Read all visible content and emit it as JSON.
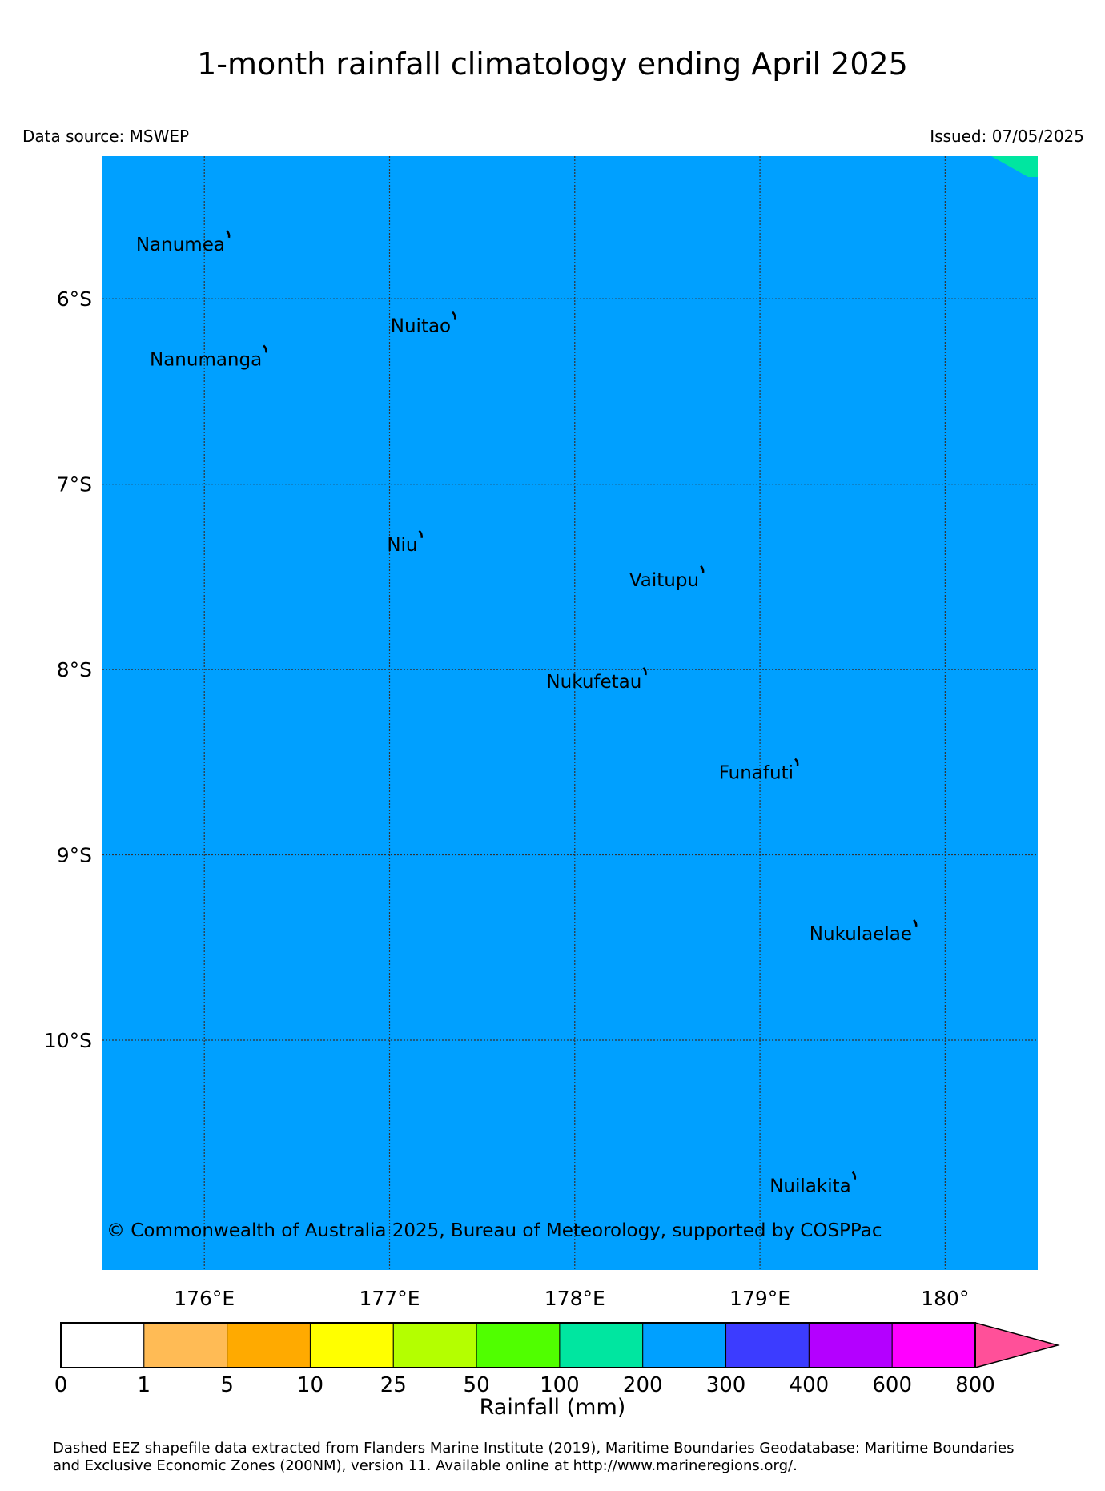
{
  "title": "1-month rainfall climatology ending April 2025",
  "data_source": "Data source: MSWEP",
  "issued": "Issued: 07/05/2025",
  "copyright": "© Commonwealth of Australia 2025, Bureau of Meteorology, supported by COSPPac",
  "map": {
    "extent": {
      "lon_min": 175.45,
      "lon_max": 180.5,
      "lat_top": -5.23,
      "lat_bottom": -11.24
    },
    "background_fill": "#00a0ff",
    "corner_fill": "#00e6a0",
    "gridline_color": "#333333",
    "lat_ticks": [
      {
        "value": -6,
        "label": "6°S"
      },
      {
        "value": -7,
        "label": "7°S"
      },
      {
        "value": -8,
        "label": "8°S"
      },
      {
        "value": -9,
        "label": "9°S"
      },
      {
        "value": -10,
        "label": "10°S"
      }
    ],
    "lon_ticks": [
      {
        "value": 176,
        "label": "176°E"
      },
      {
        "value": 177,
        "label": "177°E"
      },
      {
        "value": 178,
        "label": "178°E"
      },
      {
        "value": 179,
        "label": "179°E"
      },
      {
        "value": 180,
        "label": "180°"
      }
    ],
    "islands": [
      {
        "name": "Nanumea",
        "lon": 176.12,
        "lat": -5.67
      },
      {
        "name": "Nuitao",
        "lon": 177.34,
        "lat": -6.11
      },
      {
        "name": "Nanumanga",
        "lon": 176.32,
        "lat": -6.29
      },
      {
        "name": "Niu",
        "lon": 177.16,
        "lat": -7.29
      },
      {
        "name": "Vaitupu",
        "lon": 178.68,
        "lat": -7.48
      },
      {
        "name": "Nukufetau",
        "lon": 178.37,
        "lat": -8.03
      },
      {
        "name": "Funafuti",
        "lon": 179.19,
        "lat": -8.52
      },
      {
        "name": "Nukulaelae",
        "lon": 179.83,
        "lat": -9.39
      },
      {
        "name": "Nuilakita",
        "lon": 179.5,
        "lat": -10.75
      }
    ]
  },
  "colorbar": {
    "label": "Rainfall (mm)",
    "bins": [
      {
        "lower": "0",
        "color": "#ffffff"
      },
      {
        "lower": "1",
        "color": "#ffbb55"
      },
      {
        "lower": "5",
        "color": "#ffaa00"
      },
      {
        "lower": "10",
        "color": "#ffff00"
      },
      {
        "lower": "25",
        "color": "#b4ff00"
      },
      {
        "lower": "50",
        "color": "#50ff00"
      },
      {
        "lower": "100",
        "color": "#00e6a0"
      },
      {
        "lower": "200",
        "color": "#00a0ff"
      },
      {
        "lower": "300",
        "color": "#3c3cff"
      },
      {
        "lower": "400",
        "color": "#b400ff"
      },
      {
        "lower": "600",
        "color": "#ff00ff"
      }
    ],
    "last_label": "800",
    "extend_color": "#ff5099"
  },
  "footer": {
    "line1": "Dashed EEZ shapefile data extracted from Flanders Marine Institute (2019), Maritime Boundaries Geodatabase: Maritime Boundaries",
    "line2": "and Exclusive Economic Zones (200NM), version 11. Available online at http://www.marineregions.org/."
  }
}
